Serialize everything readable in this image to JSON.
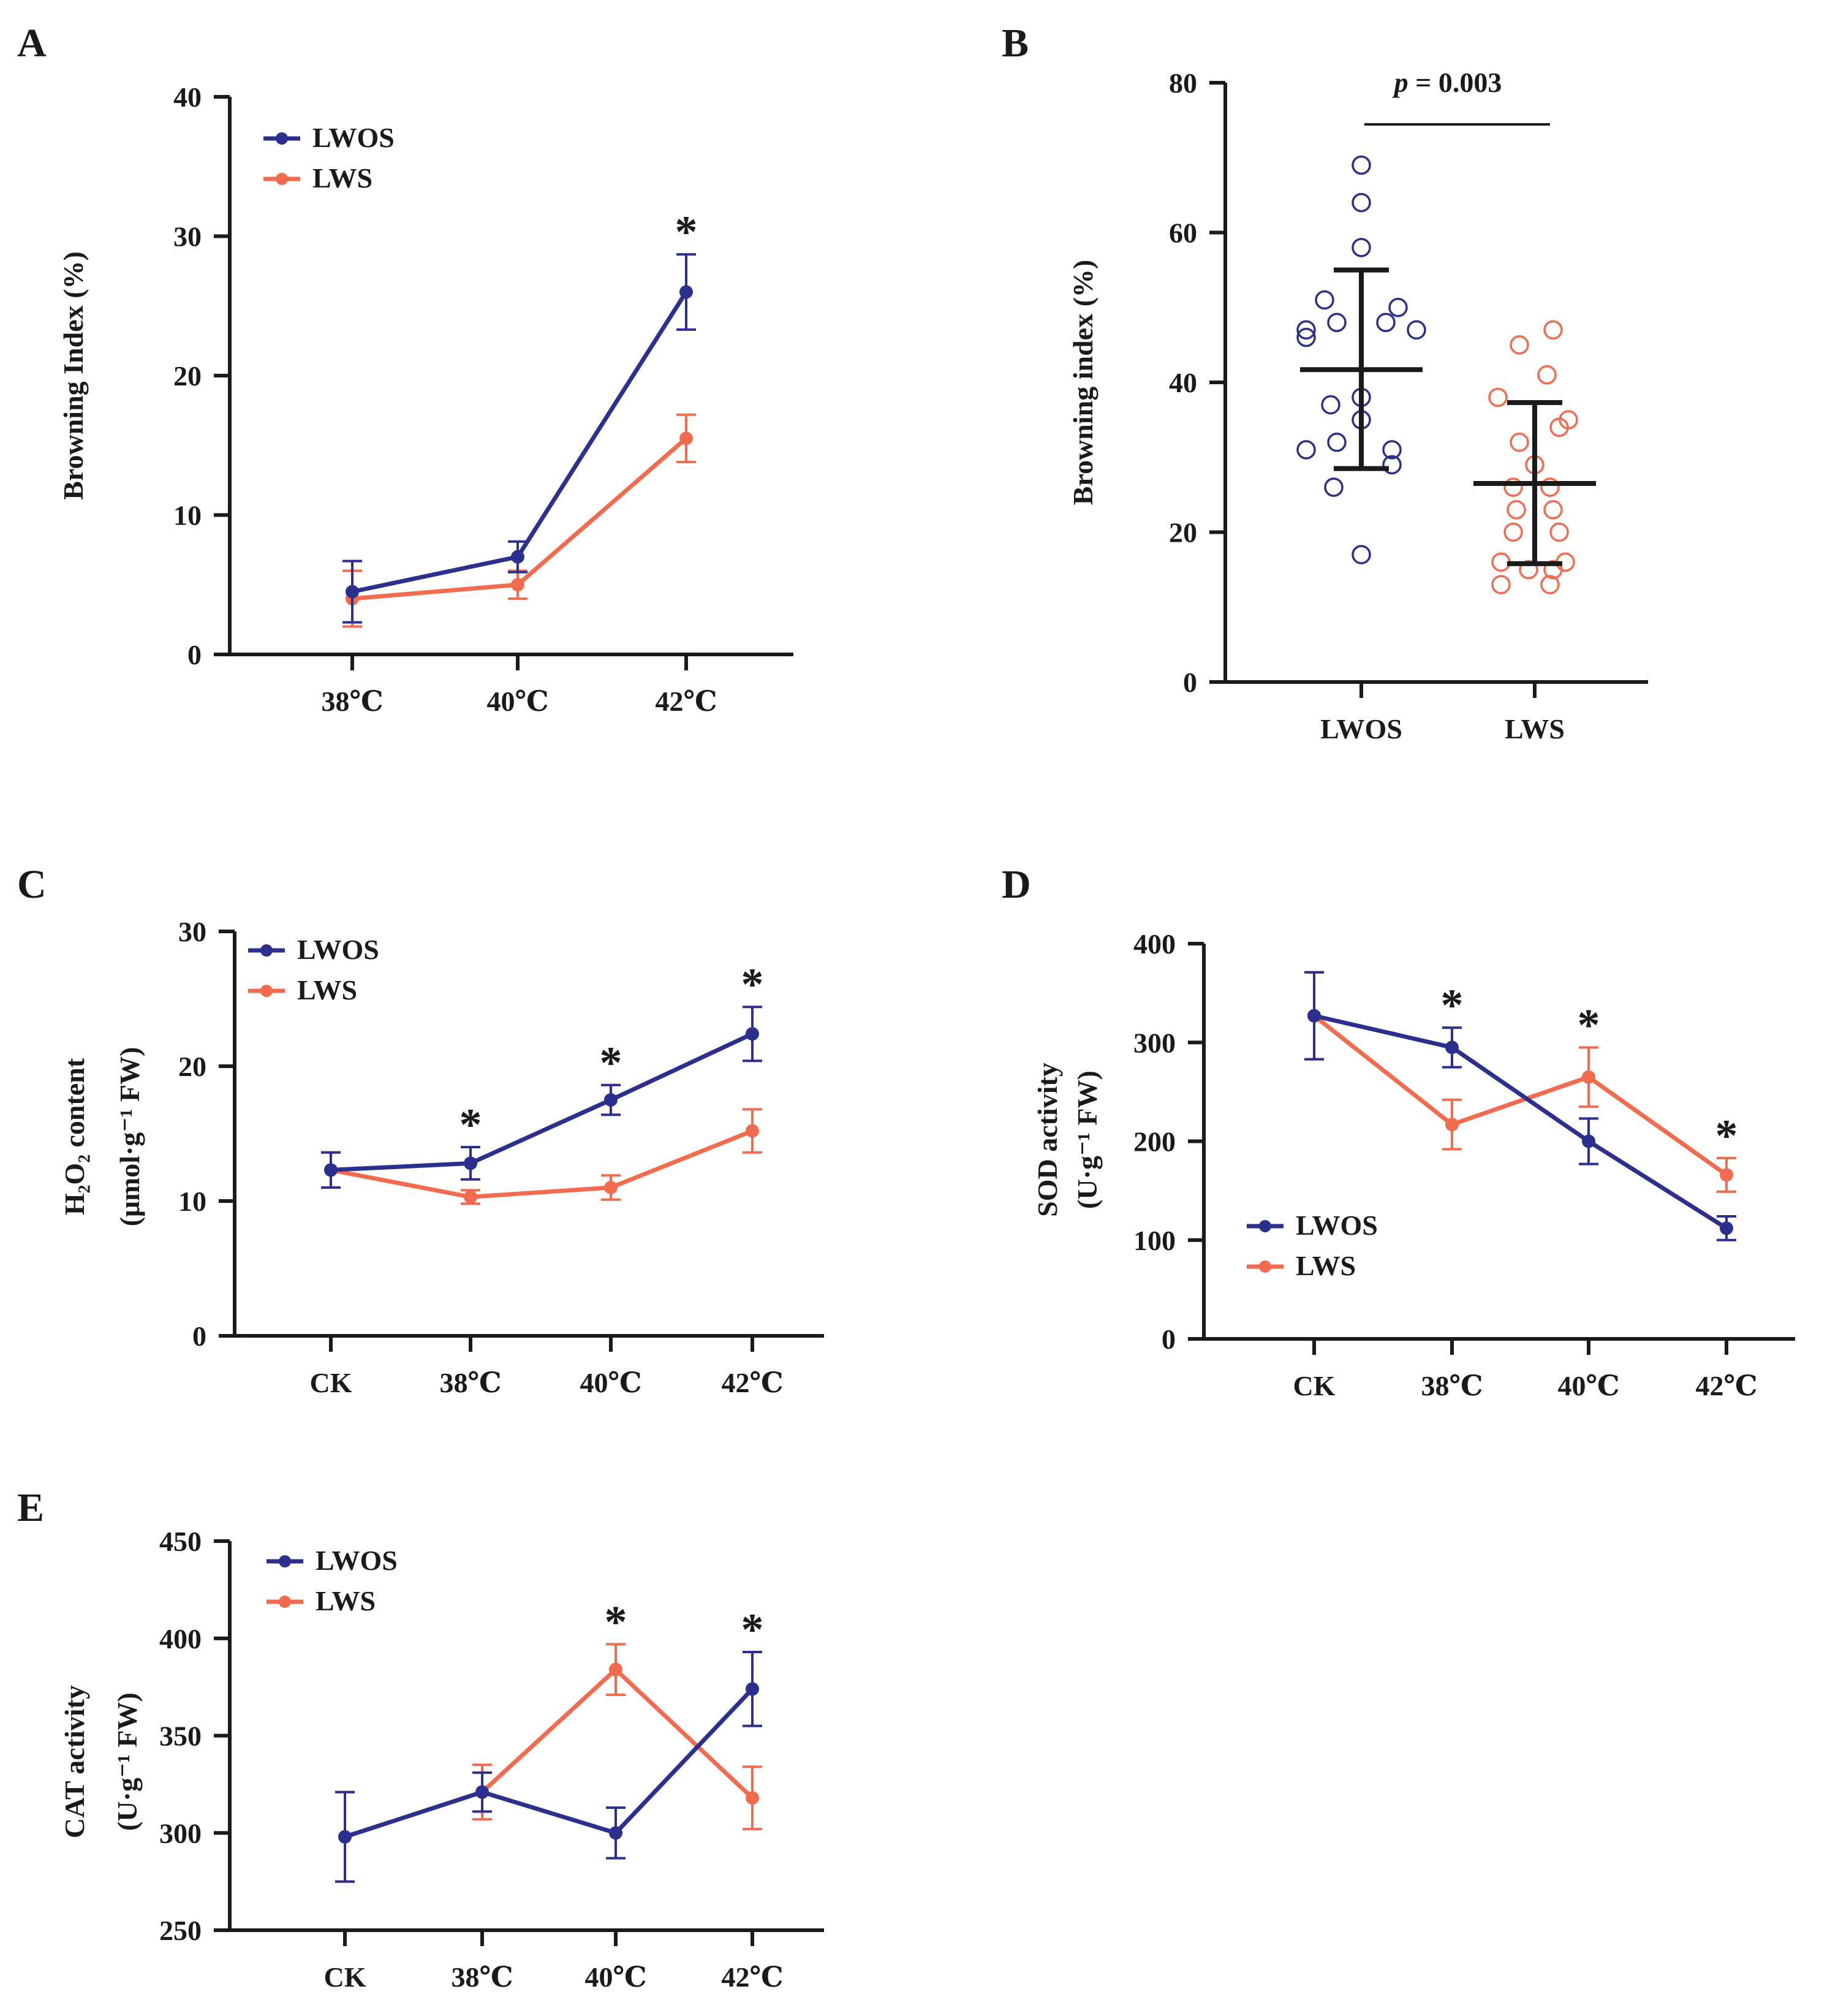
{
  "colors": {
    "lwos": "#2B2F8E",
    "lws": "#F26B4F",
    "axis": "#1a1a1a"
  },
  "chart_data": [
    {
      "id": "A",
      "type": "line",
      "panel_label": "A",
      "categories": [
        "38℃",
        "40℃",
        "42℃"
      ],
      "ylabel": "Browning Index (%)",
      "ylim": [
        0,
        40
      ],
      "yticks": [
        0,
        10,
        20,
        30,
        40
      ],
      "legend_position": "top-left",
      "series": [
        {
          "name": "LWOS",
          "color_key": "lwos",
          "values": [
            4.5,
            7,
            26
          ],
          "errors": [
            2.2,
            1.1,
            2.7
          ]
        },
        {
          "name": "LWS",
          "color_key": "lws",
          "values": [
            4,
            5,
            15.5
          ],
          "errors": [
            2,
            1,
            1.7
          ]
        }
      ],
      "significance": [
        {
          "index": 2,
          "label": "*"
        }
      ]
    },
    {
      "id": "B",
      "type": "scatter",
      "panel_label": "B",
      "categories": [
        "LWOS",
        "LWS"
      ],
      "ylabel": "Browning index (%)",
      "ylim": [
        0,
        80
      ],
      "yticks": [
        0,
        20,
        40,
        60,
        80
      ],
      "groups": [
        {
          "name": "LWOS",
          "color_key": "lwos",
          "mean": 41.7,
          "sd_low": 28.5,
          "sd_high": 55,
          "points": [
            69,
            64,
            58,
            51,
            50,
            48,
            48,
            47,
            47,
            46,
            38,
            37,
            35,
            32,
            31,
            31,
            29,
            26,
            17
          ]
        },
        {
          "name": "LWS",
          "color_key": "lws",
          "mean": 26.5,
          "sd_low": 15.8,
          "sd_high": 37.3,
          "points": [
            47,
            45,
            41,
            38,
            35,
            34,
            32,
            29,
            26,
            26,
            23,
            23,
            20,
            20,
            16,
            16,
            15,
            15,
            13,
            13
          ]
        }
      ],
      "annotation": {
        "prefix": "p",
        "text": " = 0.003"
      }
    },
    {
      "id": "C",
      "type": "line",
      "panel_label": "C",
      "categories": [
        "CK",
        "38℃",
        "40℃",
        "42℃"
      ],
      "ylabel": "H₂O₂ content",
      "ylabel2": "(μmol·g⁻¹ FW)",
      "ylim": [
        0,
        30
      ],
      "yticks": [
        0,
        10,
        20,
        30
      ],
      "legend_position": "top-left",
      "series": [
        {
          "name": "LWOS",
          "color_key": "lwos",
          "values": [
            12.3,
            12.8,
            17.5,
            22.4
          ],
          "errors": [
            1.3,
            1.2,
            1.1,
            2.0
          ]
        },
        {
          "name": "LWS",
          "color_key": "lws",
          "values": [
            12.3,
            10.3,
            11,
            15.2
          ],
          "errors": [
            1.3,
            0.5,
            0.9,
            1.6
          ]
        }
      ],
      "significance": [
        {
          "index": 1,
          "label": "*"
        },
        {
          "index": 2,
          "label": "*"
        },
        {
          "index": 3,
          "label": "*"
        }
      ]
    },
    {
      "id": "D",
      "type": "line",
      "panel_label": "D",
      "categories": [
        "CK",
        "38℃",
        "40℃",
        "42℃"
      ],
      "ylabel": "SOD activity",
      "ylabel2": "(U·g⁻¹ FW)",
      "ylim": [
        0,
        400
      ],
      "yticks": [
        0,
        100,
        200,
        300,
        400
      ],
      "legend_position": "bottom-left",
      "series": [
        {
          "name": "LWOS",
          "color_key": "lwos",
          "values": [
            327,
            295,
            200,
            112
          ],
          "errors": [
            44,
            20,
            23,
            12
          ]
        },
        {
          "name": "LWS",
          "color_key": "lws",
          "values": [
            327,
            217,
            265,
            166
          ],
          "errors": [
            44,
            25,
            30,
            17
          ]
        }
      ],
      "significance": [
        {
          "index": 1,
          "label": "*"
        },
        {
          "index": 2,
          "label": "*"
        },
        {
          "index": 3,
          "label": "*"
        }
      ]
    },
    {
      "id": "E",
      "type": "line",
      "panel_label": "E",
      "categories": [
        "CK",
        "38℃",
        "40℃",
        "42℃"
      ],
      "ylabel": "CAT activity",
      "ylabel2": "(U·g⁻¹ FW)",
      "ylim": [
        250,
        450
      ],
      "yticks": [
        250,
        300,
        350,
        400,
        450
      ],
      "legend_position": "top-left",
      "series": [
        {
          "name": "LWOS",
          "color_key": "lwos",
          "values": [
            298,
            321,
            300,
            374
          ],
          "errors": [
            23,
            10,
            13,
            19
          ]
        },
        {
          "name": "LWS",
          "color_key": "lws",
          "values": [
            298,
            321,
            384,
            318
          ],
          "errors": [
            23,
            14,
            13,
            16
          ]
        }
      ],
      "significance": [
        {
          "index": 2,
          "label": "*"
        },
        {
          "index": 3,
          "label": "*"
        }
      ]
    }
  ]
}
